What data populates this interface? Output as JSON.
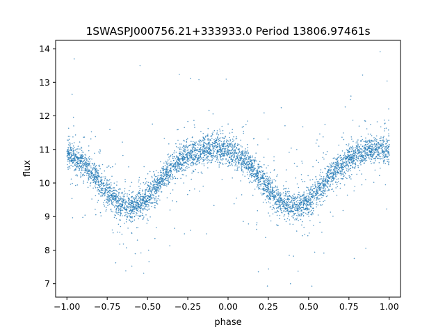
{
  "chart_data": {
    "type": "scatter",
    "title": "1SWASPJ000756.21+333933.0 Period 13806.97461s",
    "xlabel": "phase",
    "ylabel": "flux",
    "xlim": [
      -1.07,
      1.07
    ],
    "ylim": [
      6.6,
      14.25
    ],
    "xticks": [
      -1.0,
      -0.75,
      -0.5,
      -0.25,
      0.0,
      0.25,
      0.5,
      0.75,
      1.0
    ],
    "xtick_labels": [
      "−1.00",
      "−0.75",
      "−0.50",
      "−0.25",
      "0.00",
      "0.25",
      "0.50",
      "0.75",
      "1.00"
    ],
    "yticks": [
      7,
      8,
      9,
      10,
      11,
      12,
      13,
      14
    ],
    "ytick_labels": [
      "7",
      "8",
      "9",
      "10",
      "11",
      "12",
      "13",
      "14"
    ],
    "grid": false,
    "legend": "none",
    "marker_color": "#1f77b4",
    "series": [
      {
        "x": [
          -1.0,
          -0.95,
          -0.9,
          -0.85,
          -0.8,
          -0.75,
          -0.7,
          -0.65,
          -0.6,
          -0.55,
          -0.5,
          -0.45,
          -0.4,
          -0.35,
          -0.3,
          -0.25,
          -0.2,
          -0.15,
          -0.1,
          -0.05,
          0.0,
          0.05,
          0.1,
          0.15,
          0.2,
          0.25,
          0.3,
          0.35,
          0.4,
          0.45,
          0.5,
          0.55,
          0.6,
          0.65,
          0.7,
          0.75,
          0.8,
          0.85,
          0.9,
          0.95,
          1.0
        ],
        "y": [
          10.85,
          10.75,
          10.6,
          10.35,
          10.05,
          9.75,
          9.5,
          9.35,
          9.3,
          9.35,
          9.55,
          9.85,
          10.15,
          10.45,
          10.65,
          10.8,
          10.9,
          10.98,
          11.02,
          11.0,
          10.95,
          10.85,
          10.7,
          10.45,
          10.15,
          9.85,
          9.55,
          9.35,
          9.3,
          9.32,
          9.45,
          9.7,
          10.0,
          10.3,
          10.55,
          10.72,
          10.85,
          10.95,
          11.0,
          11.0,
          10.95
        ]
      }
    ]
  }
}
